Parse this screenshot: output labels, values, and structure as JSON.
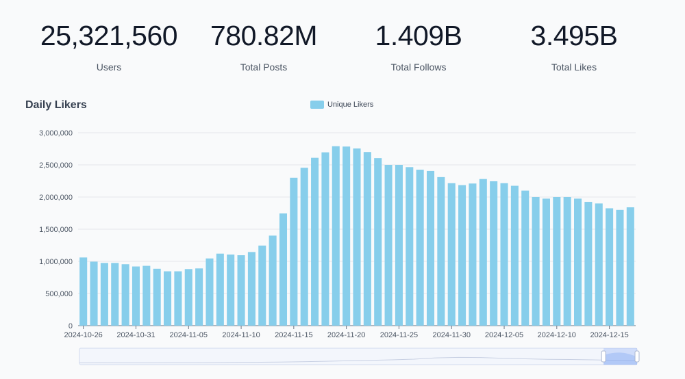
{
  "stats": [
    {
      "value": "25,321,560",
      "label": "Users"
    },
    {
      "value": "780.82M",
      "label": "Total Posts"
    },
    {
      "value": "1.409B",
      "label": "Total Follows"
    },
    {
      "value": "3.495B",
      "label": "Total Likes"
    }
  ],
  "chart_data": {
    "type": "bar",
    "title": "Daily Likers",
    "series": [
      {
        "name": "Unique Likers",
        "color": "#87ceeb",
        "values": [
          1060000,
          995000,
          975000,
          975000,
          955000,
          920000,
          930000,
          885000,
          845000,
          845000,
          880000,
          890000,
          1045000,
          1120000,
          1105000,
          1095000,
          1145000,
          1245000,
          1400000,
          1745000,
          2300000,
          2455000,
          2610000,
          2695000,
          2790000,
          2785000,
          2755000,
          2700000,
          2605000,
          2500000,
          2500000,
          2465000,
          2425000,
          2405000,
          2310000,
          2215000,
          2185000,
          2210000,
          2280000,
          2245000,
          2215000,
          2175000,
          2100000,
          2000000,
          1975000,
          2000000,
          2000000,
          1975000,
          1925000,
          1900000,
          1825000,
          1800000,
          1840000
        ]
      }
    ],
    "start_date": "2024-10-26",
    "x_ticks": [
      "2024-10-26",
      "2024-10-31",
      "2024-11-05",
      "2024-11-10",
      "2024-11-15",
      "2024-11-20",
      "2024-11-25",
      "2024-11-30",
      "2024-12-05",
      "2024-12-10",
      "2024-12-15"
    ],
    "y_ticks": [
      "0",
      "500,000",
      "1,000,000",
      "1,500,000",
      "2,000,000",
      "2,500,000",
      "3,000,000"
    ],
    "ylim": [
      0,
      3000000
    ],
    "grid": true,
    "legend": "top-center",
    "zoom_window": [
      0.94,
      1.0
    ]
  }
}
